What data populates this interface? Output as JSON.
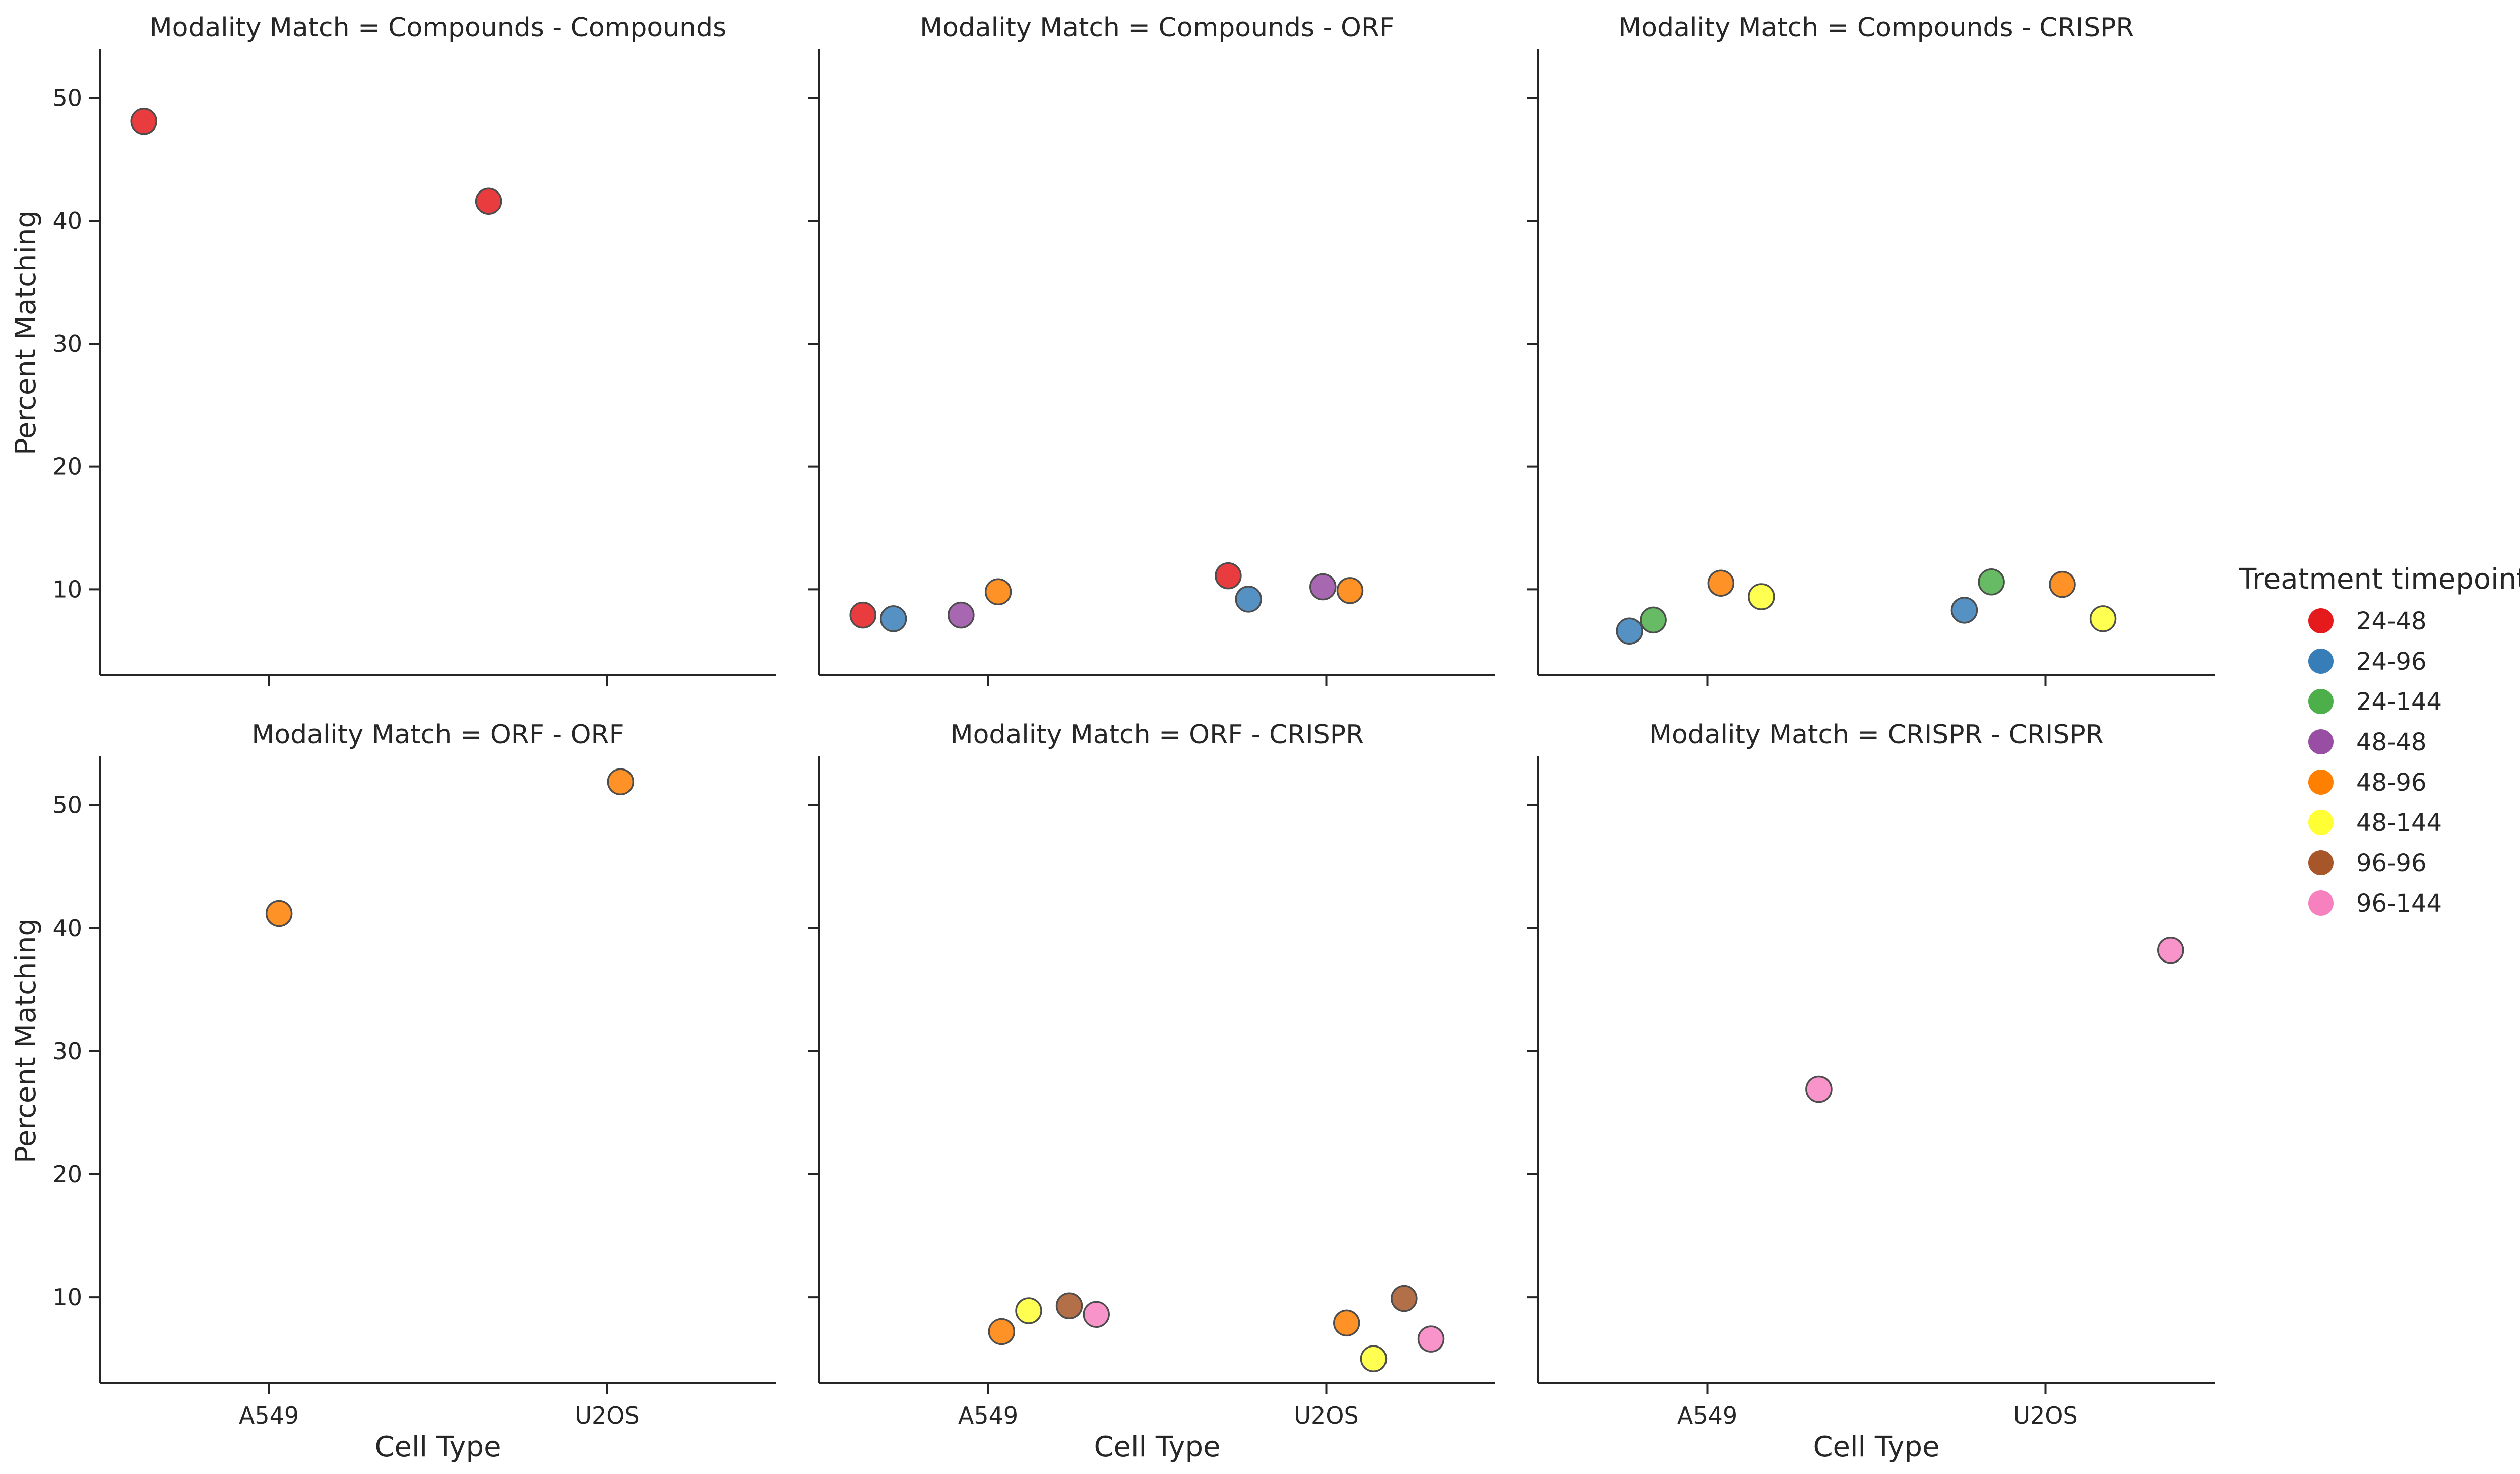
{
  "chart_data": {
    "type": "scatter",
    "facet_prefix": "Modality Match = ",
    "xlabel": "Cell Type",
    "ylabel": "Percent Matching",
    "categories": [
      "A549",
      "U2OS"
    ],
    "ylim": [
      3,
      54
    ],
    "yticks": [
      10,
      20,
      30,
      40,
      50
    ],
    "legend": {
      "title": "Treatment timepoint",
      "position": "right",
      "entries": [
        {
          "name": "24-48",
          "color": "#e41a1c"
        },
        {
          "name": "24-96",
          "color": "#377eb8"
        },
        {
          "name": "24-144",
          "color": "#4daf4a"
        },
        {
          "name": "48-48",
          "color": "#984ea3"
        },
        {
          "name": "48-96",
          "color": "#ff7f00"
        },
        {
          "name": "48-144",
          "color": "#ffff33"
        },
        {
          "name": "96-96",
          "color": "#a65628"
        },
        {
          "name": "96-144",
          "color": "#f781bf"
        }
      ]
    },
    "panels": [
      {
        "title": "Compounds - Compounds",
        "points": [
          {
            "cell": "A549",
            "offset": -0.37,
            "timepoint": "24-48",
            "y": 48.1
          },
          {
            "cell": "U2OS",
            "offset": -0.35,
            "timepoint": "24-48",
            "y": 41.6
          }
        ]
      },
      {
        "title": "Compounds - ORF",
        "points": [
          {
            "cell": "A549",
            "offset": -0.37,
            "timepoint": "24-48",
            "y": 7.9
          },
          {
            "cell": "A549",
            "offset": -0.28,
            "timepoint": "24-96",
            "y": 7.6
          },
          {
            "cell": "A549",
            "offset": -0.08,
            "timepoint": "48-48",
            "y": 7.9
          },
          {
            "cell": "A549",
            "offset": 0.03,
            "timepoint": "48-96",
            "y": 9.8
          },
          {
            "cell": "U2OS",
            "offset": -0.29,
            "timepoint": "24-48",
            "y": 11.1
          },
          {
            "cell": "U2OS",
            "offset": -0.23,
            "timepoint": "24-96",
            "y": 9.2
          },
          {
            "cell": "U2OS",
            "offset": -0.01,
            "timepoint": "48-48",
            "y": 10.2
          },
          {
            "cell": "U2OS",
            "offset": 0.07,
            "timepoint": "48-96",
            "y": 9.9
          }
        ]
      },
      {
        "title": "Compounds - CRISPR",
        "points": [
          {
            "cell": "A549",
            "offset": -0.23,
            "timepoint": "24-96",
            "y": 6.6
          },
          {
            "cell": "A549",
            "offset": -0.16,
            "timepoint": "24-144",
            "y": 7.5
          },
          {
            "cell": "A549",
            "offset": 0.04,
            "timepoint": "48-96",
            "y": 10.5
          },
          {
            "cell": "A549",
            "offset": 0.16,
            "timepoint": "48-144",
            "y": 9.4
          },
          {
            "cell": "U2OS",
            "offset": -0.24,
            "timepoint": "24-96",
            "y": 8.3
          },
          {
            "cell": "U2OS",
            "offset": -0.16,
            "timepoint": "24-144",
            "y": 10.6
          },
          {
            "cell": "U2OS",
            "offset": 0.05,
            "timepoint": "48-96",
            "y": 10.4
          },
          {
            "cell": "U2OS",
            "offset": 0.17,
            "timepoint": "48-144",
            "y": 7.6
          }
        ]
      },
      {
        "title": "ORF - ORF",
        "points": [
          {
            "cell": "A549",
            "offset": 0.03,
            "timepoint": "48-96",
            "y": 41.2
          },
          {
            "cell": "U2OS",
            "offset": 0.04,
            "timepoint": "48-96",
            "y": 51.9
          }
        ]
      },
      {
        "title": "ORF - CRISPR",
        "points": [
          {
            "cell": "A549",
            "offset": 0.04,
            "timepoint": "48-96",
            "y": 7.2
          },
          {
            "cell": "A549",
            "offset": 0.12,
            "timepoint": "48-144",
            "y": 8.9
          },
          {
            "cell": "A549",
            "offset": 0.24,
            "timepoint": "96-96",
            "y": 9.3
          },
          {
            "cell": "A549",
            "offset": 0.32,
            "timepoint": "96-144",
            "y": 8.6
          },
          {
            "cell": "U2OS",
            "offset": 0.06,
            "timepoint": "48-96",
            "y": 7.9
          },
          {
            "cell": "U2OS",
            "offset": 0.14,
            "timepoint": "48-144",
            "y": 5.0
          },
          {
            "cell": "U2OS",
            "offset": 0.23,
            "timepoint": "96-96",
            "y": 9.9
          },
          {
            "cell": "U2OS",
            "offset": 0.31,
            "timepoint": "96-144",
            "y": 6.6
          }
        ]
      },
      {
        "title": "CRISPR - CRISPR",
        "points": [
          {
            "cell": "A549",
            "offset": 0.33,
            "timepoint": "96-144",
            "y": 26.9
          },
          {
            "cell": "U2OS",
            "offset": 0.37,
            "timepoint": "96-144",
            "y": 38.2
          }
        ]
      }
    ]
  }
}
